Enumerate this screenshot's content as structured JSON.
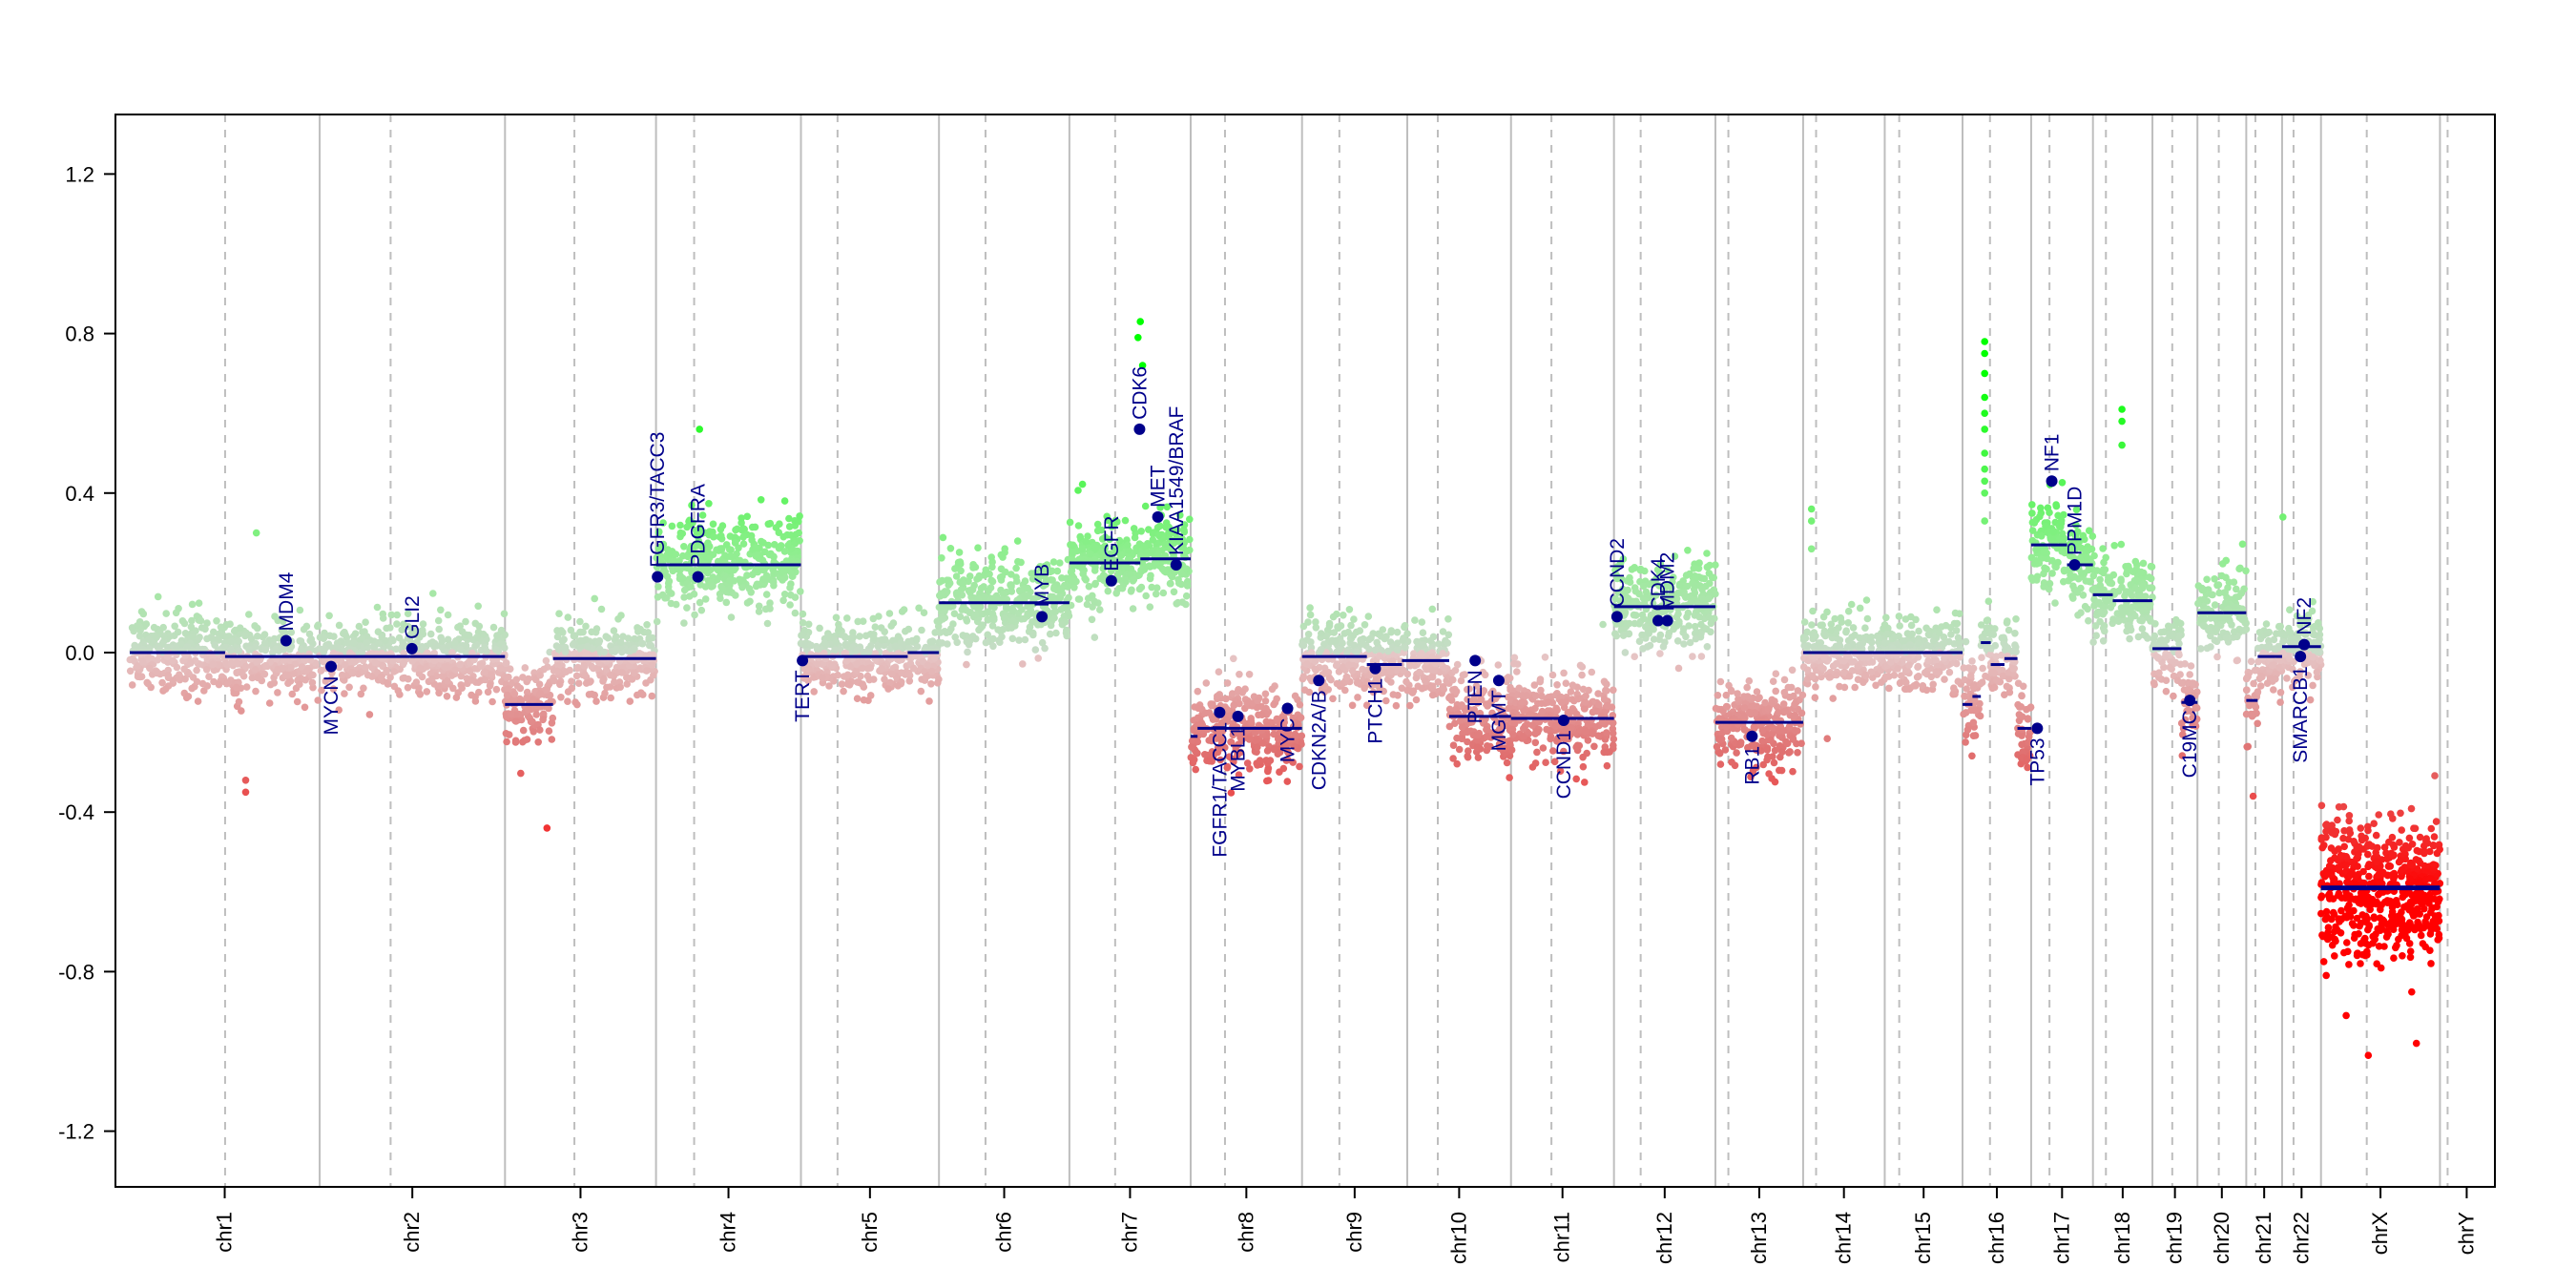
{
  "chart_data": {
    "type": "scatter",
    "title": "",
    "xlabel": "",
    "ylabel": "",
    "ylim": [
      -1.35,
      1.35
    ],
    "grid": "vertical chromosome boundaries (solid) and centromeres (dashed)",
    "y_ticks": [
      "-1.2",
      "-0.8",
      "-0.4",
      "0.0",
      "0.4",
      "0.8",
      "1.2"
    ],
    "colors": {
      "gain_light": "#c8dcc8",
      "gain_mid": "#90ee90",
      "gain_strong": "#00ff00",
      "loss_light": "#e6c8c8",
      "loss_mid": "#e07070",
      "loss_strong": "#ff0000",
      "segment": "#00008b",
      "gene": "#00008b",
      "boundary": "#bebebe"
    },
    "chromosomes": [
      {
        "name": "chr1",
        "start": 0,
        "end": 249,
        "cen": 125
      },
      {
        "name": "chr2",
        "start": 249,
        "end": 492,
        "cen": 93
      },
      {
        "name": "chr3",
        "start": 492,
        "end": 690,
        "cen": 91
      },
      {
        "name": "chr4",
        "start": 690,
        "end": 880,
        "cen": 50
      },
      {
        "name": "chr5",
        "start": 880,
        "end": 1061,
        "cen": 48
      },
      {
        "name": "chr6",
        "start": 1061,
        "end": 1232,
        "cen": 61
      },
      {
        "name": "chr7",
        "start": 1232,
        "end": 1391,
        "cen": 60
      },
      {
        "name": "chr8",
        "start": 1391,
        "end": 1537,
        "cen": 45
      },
      {
        "name": "chr9",
        "start": 1537,
        "end": 1675,
        "cen": 49
      },
      {
        "name": "chr10",
        "start": 1675,
        "end": 1811,
        "cen": 40
      },
      {
        "name": "chr11",
        "start": 1811,
        "end": 1946,
        "cen": 53
      },
      {
        "name": "chr12",
        "start": 1946,
        "end": 2079,
        "cen": 35
      },
      {
        "name": "chr13",
        "start": 2079,
        "end": 2194,
        "cen": 17
      },
      {
        "name": "chr14",
        "start": 2194,
        "end": 2301,
        "cen": 17
      },
      {
        "name": "chr15",
        "start": 2301,
        "end": 2403,
        "cen": 19
      },
      {
        "name": "chr16",
        "start": 2403,
        "end": 2493,
        "cen": 36
      },
      {
        "name": "chr17",
        "start": 2493,
        "end": 2574,
        "cen": 24
      },
      {
        "name": "chr18",
        "start": 2574,
        "end": 2652,
        "cen": 17
      },
      {
        "name": "chr19",
        "start": 2652,
        "end": 2711,
        "cen": 26
      },
      {
        "name": "chr20",
        "start": 2711,
        "end": 2775,
        "cen": 28
      },
      {
        "name": "chr21",
        "start": 2775,
        "end": 2822,
        "cen": 12
      },
      {
        "name": "chr22",
        "start": 2822,
        "end": 2873,
        "cen": 15
      },
      {
        "name": "chrX",
        "start": 2873,
        "end": 3029,
        "cen": 60
      },
      {
        "name": "chrY",
        "start": 3029,
        "end": 3086,
        "cen": 10
      }
    ],
    "segments": [
      {
        "start": 0,
        "end": 125,
        "value": 0.0
      },
      {
        "start": 125,
        "end": 249,
        "value": -0.01
      },
      {
        "start": 249,
        "end": 492,
        "value": -0.01
      },
      {
        "start": 492,
        "end": 555,
        "value": -0.13
      },
      {
        "start": 555,
        "end": 690,
        "value": -0.015
      },
      {
        "start": 690,
        "end": 880,
        "value": 0.22
      },
      {
        "start": 880,
        "end": 1020,
        "value": -0.01
      },
      {
        "start": 1020,
        "end": 1061,
        "value": 0.0
      },
      {
        "start": 1061,
        "end": 1232,
        "value": 0.125
      },
      {
        "start": 1232,
        "end": 1325,
        "value": 0.225
      },
      {
        "start": 1325,
        "end": 1391,
        "value": 0.235
      },
      {
        "start": 1391,
        "end": 1400,
        "value": -0.21
      },
      {
        "start": 1400,
        "end": 1537,
        "value": -0.19
      },
      {
        "start": 1537,
        "end": 1622,
        "value": -0.01
      },
      {
        "start": 1622,
        "end": 1668,
        "value": -0.03
      },
      {
        "start": 1668,
        "end": 1730,
        "value": -0.02
      },
      {
        "start": 1730,
        "end": 1811,
        "value": -0.16
      },
      {
        "start": 1811,
        "end": 1946,
        "value": -0.165
      },
      {
        "start": 1946,
        "end": 2079,
        "value": 0.115
      },
      {
        "start": 2079,
        "end": 2194,
        "value": -0.175
      },
      {
        "start": 2194,
        "end": 2301,
        "value": 0.0
      },
      {
        "start": 2301,
        "end": 2403,
        "value": 0.0
      },
      {
        "start": 2403,
        "end": 2416,
        "value": -0.13
      },
      {
        "start": 2416,
        "end": 2427,
        "value": -0.11
      },
      {
        "start": 2427,
        "end": 2440,
        "value": 0.025
      },
      {
        "start": 2440,
        "end": 2458,
        "value": -0.03
      },
      {
        "start": 2458,
        "end": 2475,
        "value": -0.015
      },
      {
        "start": 2475,
        "end": 2493,
        "value": -0.19
      },
      {
        "start": 2493,
        "end": 2540,
        "value": 0.27
      },
      {
        "start": 2540,
        "end": 2574,
        "value": 0.22
      },
      {
        "start": 2574,
        "end": 2600,
        "value": 0.145
      },
      {
        "start": 2600,
        "end": 2652,
        "value": 0.13
      },
      {
        "start": 2652,
        "end": 2690,
        "value": 0.01
      },
      {
        "start": 2690,
        "end": 2711,
        "value": -0.125
      },
      {
        "start": 2711,
        "end": 2745,
        "value": 0.1
      },
      {
        "start": 2745,
        "end": 2775,
        "value": 0.1
      },
      {
        "start": 2775,
        "end": 2790,
        "value": -0.12
      },
      {
        "start": 2790,
        "end": 2822,
        "value": -0.01
      },
      {
        "start": 2822,
        "end": 2873,
        "value": 0.015
      },
      {
        "start": 2873,
        "end": 3029,
        "value": -0.59
      }
    ],
    "genes": [
      {
        "name": "MDM4",
        "pos": 205,
        "value": 0.03,
        "side": "up"
      },
      {
        "name": "MYCN",
        "pos": 264,
        "value": -0.035,
        "side": "down"
      },
      {
        "name": "GLI2",
        "pos": 370,
        "value": 0.01,
        "side": "up"
      },
      {
        "name": "FGFR3/TACC3",
        "pos": 692,
        "value": 0.19,
        "side": "up"
      },
      {
        "name": "PDGFRA",
        "pos": 745,
        "value": 0.19,
        "side": "up"
      },
      {
        "name": "TERT",
        "pos": 882,
        "value": -0.02,
        "side": "down"
      },
      {
        "name": "MYB",
        "pos": 1196,
        "value": 0.09,
        "side": "up"
      },
      {
        "name": "EGFR",
        "pos": 1287,
        "value": 0.18,
        "side": "up"
      },
      {
        "name": "CDK6",
        "pos": 1324,
        "value": 0.56,
        "side": "up"
      },
      {
        "name": "MET",
        "pos": 1348,
        "value": 0.34,
        "side": "up"
      },
      {
        "name": "KIAA1549/BRAF",
        "pos": 1372,
        "value": 0.22,
        "side": "up"
      },
      {
        "name": "FGFR1/TACC1",
        "pos": 1429,
        "value": -0.15,
        "side": "down"
      },
      {
        "name": "MYBL1",
        "pos": 1453,
        "value": -0.16,
        "side": "down"
      },
      {
        "name": "MYC",
        "pos": 1518,
        "value": -0.14,
        "side": "down"
      },
      {
        "name": "CDKN2A/B",
        "pos": 1559,
        "value": -0.07,
        "side": "down"
      },
      {
        "name": "PTCH1",
        "pos": 1633,
        "value": -0.04,
        "side": "down"
      },
      {
        "name": "PTEN",
        "pos": 1764,
        "value": -0.02,
        "side": "down"
      },
      {
        "name": "MGMT",
        "pos": 1795,
        "value": -0.07,
        "side": "down"
      },
      {
        "name": "CCND1",
        "pos": 1880,
        "value": -0.17,
        "side": "down"
      },
      {
        "name": "CCND2",
        "pos": 1950,
        "value": 0.09,
        "side": "up"
      },
      {
        "name": "CDK4",
        "pos": 2004,
        "value": 0.08,
        "side": "up"
      },
      {
        "name": "MDM2",
        "pos": 2016,
        "value": 0.08,
        "side": "up"
      },
      {
        "name": "RB1",
        "pos": 2127,
        "value": -0.21,
        "side": "down"
      },
      {
        "name": "TP53",
        "pos": 2501,
        "value": -0.19,
        "side": "down"
      },
      {
        "name": "NF1",
        "pos": 2520,
        "value": 0.43,
        "side": "up"
      },
      {
        "name": "PPM1D",
        "pos": 2550,
        "value": 0.22,
        "side": "up"
      },
      {
        "name": "C19MC",
        "pos": 2701,
        "value": -0.12,
        "side": "down"
      },
      {
        "name": "SMARCB1",
        "pos": 2846,
        "value": -0.01,
        "side": "down"
      },
      {
        "name": "NF2",
        "pos": 2851,
        "value": 0.02,
        "side": "up"
      }
    ],
    "outliers": [
      {
        "x": 2432,
        "y": 0.78
      },
      {
        "x": 2432,
        "y": 0.75
      },
      {
        "x": 2432,
        "y": 0.7
      },
      {
        "x": 2432,
        "y": 0.64
      },
      {
        "x": 2432,
        "y": 0.6
      },
      {
        "x": 2432,
        "y": 0.56
      },
      {
        "x": 2432,
        "y": 0.5
      },
      {
        "x": 2432,
        "y": 0.46
      },
      {
        "x": 2432,
        "y": 0.43
      },
      {
        "x": 2432,
        "y": 0.4
      },
      {
        "x": 2432,
        "y": 0.33
      },
      {
        "x": 2612,
        "y": 0.61
      },
      {
        "x": 2612,
        "y": 0.58
      },
      {
        "x": 2612,
        "y": 0.52
      },
      {
        "x": 1325,
        "y": 0.83
      },
      {
        "x": 1322,
        "y": 0.79
      },
      {
        "x": 1328,
        "y": 0.72
      },
      {
        "x": 2205,
        "y": 0.36
      },
      {
        "x": 2205,
        "y": 0.33
      },
      {
        "x": 2205,
        "y": 0.26
      },
      {
        "x": 2823,
        "y": 0.34
      },
      {
        "x": 166,
        "y": 0.3
      },
      {
        "x": 747,
        "y": 0.56
      },
      {
        "x": 547,
        "y": -0.44
      },
      {
        "x": 152,
        "y": -0.32
      },
      {
        "x": 152,
        "y": -0.35
      },
      {
        "x": 2784,
        "y": -0.36
      },
      {
        "x": 2935,
        "y": -1.01
      },
      {
        "x": 2998,
        "y": -0.98
      },
      {
        "x": 2906,
        "y": -0.91
      }
    ]
  }
}
